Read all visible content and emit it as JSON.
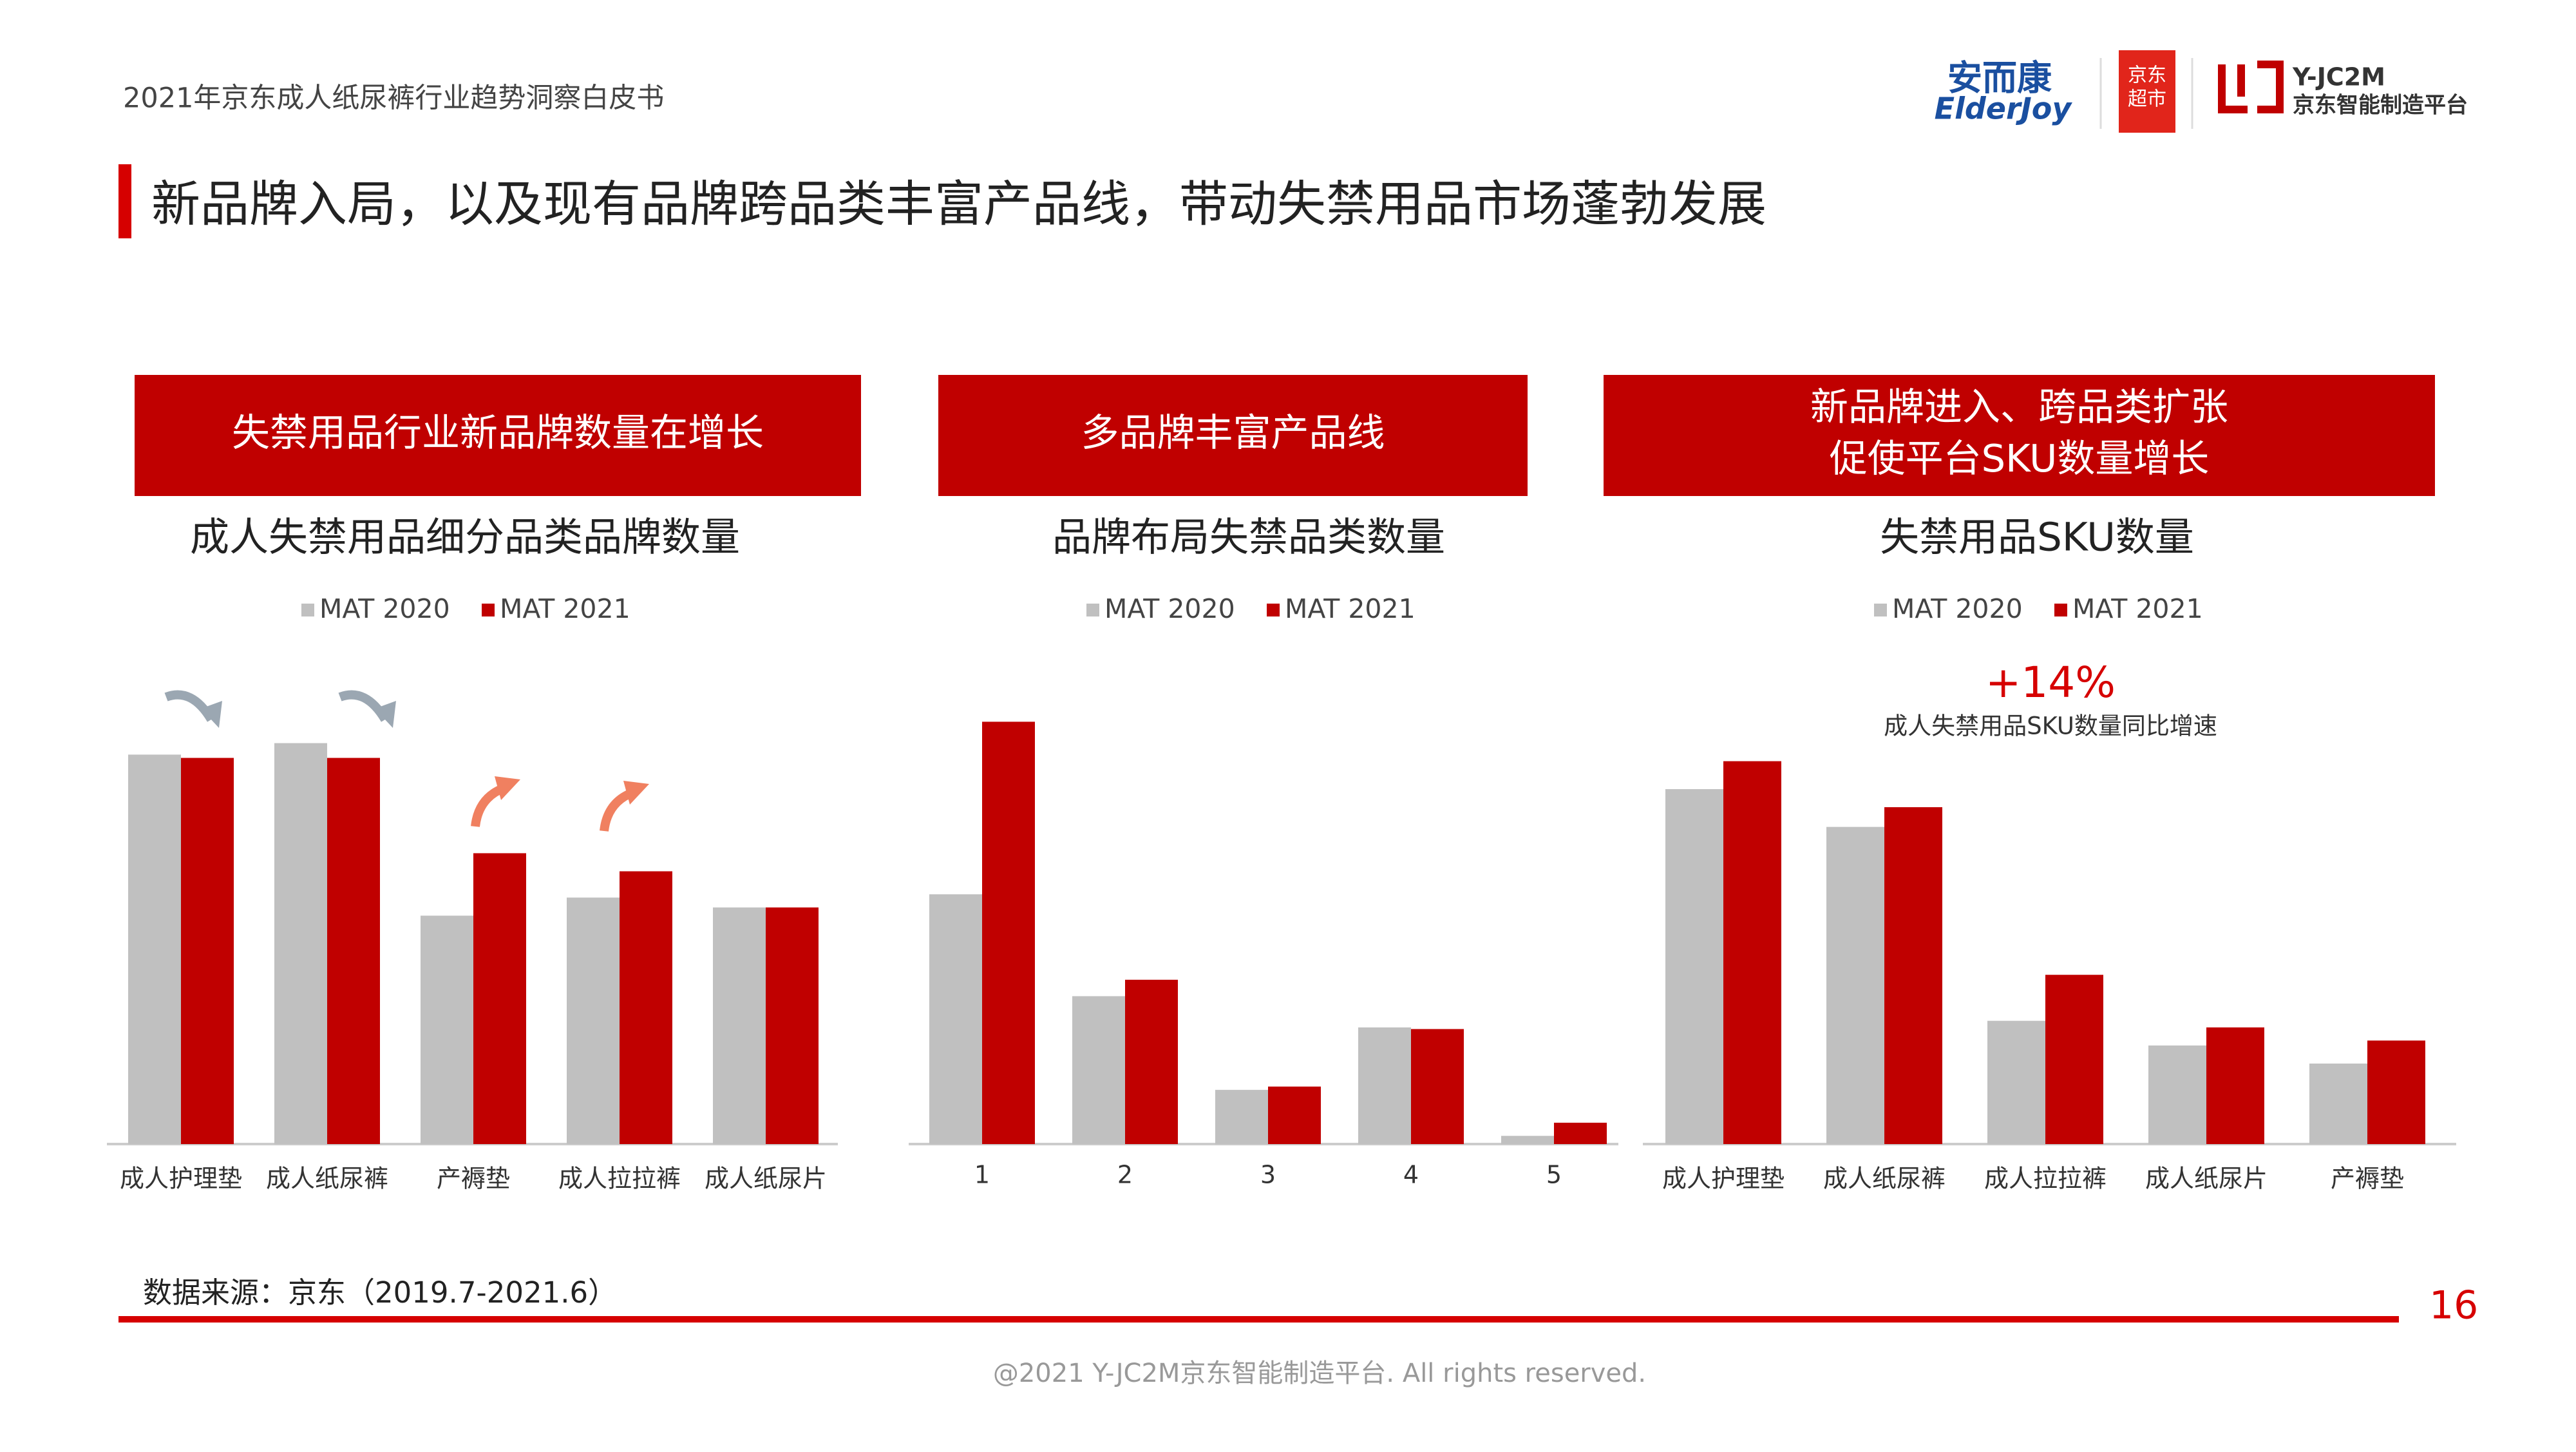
{
  "header": "2021年京东成人纸尿裤行业趋势洞察白皮书",
  "logos": [
    "安而康",
    "ElderJoy",
    "京东",
    "超市",
    "Y-JC2M",
    "京东智能制造平台"
  ],
  "headline": "新品牌入局，以及现有品牌跨品类丰富产品线，带动失禁用品市场蓬勃发展",
  "panels": [
    {
      "lines": [
        "失禁用品行业新品牌数量在增长"
      ]
    },
    {
      "lines": [
        "多品牌丰富产品线"
      ]
    },
    {
      "lines": [
        "新品牌进入、跨品类扩张",
        "促使平台SKU数量增长"
      ]
    }
  ],
  "chart_data": [
    {
      "type": "bar",
      "title": "成人失禁用品细分品类品牌数量",
      "categories": [
        "成人护理垫",
        "成人纸尿裤",
        "产褥垫",
        "成人拉拉裤",
        "成人纸尿片"
      ],
      "series": [
        {
          "name": "MAT 2020",
          "color": "#c0c0c0",
          "values": [
            237,
            244,
            139,
            150,
            144
          ]
        },
        {
          "name": "MAT 2021",
          "color": "#c00000",
          "values": [
            235,
            235,
            177,
            166,
            144
          ]
        }
      ]
    },
    {
      "type": "bar",
      "title": "品牌布局失禁品类数量",
      "categories": [
        "1",
        "2",
        "3",
        "4",
        "5"
      ],
      "series": [
        {
          "name": "MAT 2020",
          "color": "#c0c0c0",
          "values": [
            152,
            90,
            33,
            71,
            5
          ]
        },
        {
          "name": "MAT 2021",
          "color": "#c00000",
          "values": [
            257,
            100,
            35,
            70,
            13
          ]
        }
      ]
    },
    {
      "type": "bar",
      "title": "失禁用品SKU数量",
      "categories": [
        "成人护理垫",
        "成人纸尿裤",
        "成人拉拉裤",
        "成人纸尿片",
        "产褥垫"
      ],
      "series": [
        {
          "name": "MAT 2020",
          "color": "#c0c0c0",
          "values": [
            216,
            193,
            75,
            60,
            49
          ]
        },
        {
          "name": "MAT 2021",
          "color": "#c00000",
          "values": [
            233,
            205,
            103,
            71,
            63
          ]
        }
      ],
      "annotations": [
        "+14%",
        "成人失禁用品SKU数量同比增速"
      ]
    }
  ],
  "source": "数据来源：京东（2019.7-2021.6）",
  "page_number": "16",
  "footer": "@2021 Y-JC2M京东智能制造平台. All rights reserved."
}
